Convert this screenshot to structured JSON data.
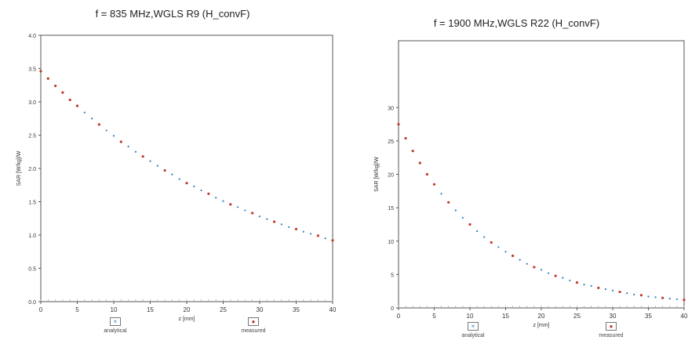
{
  "chart_data": [
    {
      "type": "scatter",
      "title": "f = 835 MHz,WGLS R9 (H_convF)",
      "xlabel": "z [mm]",
      "ylabel": "SAR [W/kg]/W",
      "xlim": [
        0,
        40
      ],
      "ylim": [
        0,
        4.0
      ],
      "xticks": [
        "0",
        "5",
        "10",
        "15",
        "20",
        "25",
        "30",
        "35",
        "40"
      ],
      "yticks": [
        "0.0",
        "0.5",
        "1.0",
        "1.5",
        "2.0",
        "2.5",
        "3.0",
        "3.5",
        "4.0"
      ],
      "legend": [
        "analytical",
        "measured"
      ],
      "legend_placement": "bottom",
      "grid": false,
      "series": [
        {
          "name": "analytical",
          "color": "#2d7fbf",
          "x": [
            0,
            1,
            2,
            3,
            4,
            5,
            6,
            7,
            8,
            9,
            10,
            11,
            12,
            13,
            14,
            15,
            16,
            17,
            18,
            19,
            20,
            21,
            22,
            23,
            24,
            25,
            26,
            27,
            28,
            29,
            30,
            31,
            32,
            33,
            34,
            35,
            36,
            37,
            38,
            39,
            40
          ],
          "y": [
            3.46,
            3.35,
            3.24,
            3.14,
            3.03,
            2.94,
            2.84,
            2.75,
            2.66,
            2.57,
            2.49,
            2.4,
            2.33,
            2.25,
            2.18,
            2.11,
            2.04,
            1.97,
            1.91,
            1.84,
            1.78,
            1.73,
            1.67,
            1.62,
            1.56,
            1.51,
            1.46,
            1.42,
            1.37,
            1.33,
            1.28,
            1.24,
            1.2,
            1.16,
            1.12,
            1.09,
            1.05,
            1.02,
            0.99,
            0.95,
            0.92
          ]
        },
        {
          "name": "measured",
          "color": "#c0392b",
          "x": [
            0,
            1,
            2,
            3,
            4,
            5,
            8,
            11,
            14,
            17,
            20,
            23,
            26,
            29,
            32,
            35,
            38,
            40
          ],
          "y": [
            3.46,
            3.35,
            3.24,
            3.14,
            3.03,
            2.94,
            2.66,
            2.4,
            2.18,
            1.97,
            1.78,
            1.62,
            1.46,
            1.33,
            1.2,
            1.09,
            0.99,
            0.92
          ]
        }
      ]
    },
    {
      "type": "scatter",
      "title": "f = 1900 MHz,WGLS R22 (H_convF)",
      "xlabel": "z [mm]",
      "ylabel": "SAR [W/kg]/W",
      "xlim": [
        0,
        40
      ],
      "ylim": [
        0,
        40
      ],
      "xticks": [
        "0",
        "5",
        "10",
        "15",
        "20",
        "25",
        "30",
        "35",
        "40"
      ],
      "yticks": [
        "0",
        "5",
        "10",
        "15",
        "20",
        "25",
        "30"
      ],
      "legend": [
        "analytical",
        "measured"
      ],
      "legend_placement": "bottom",
      "grid": false,
      "series": [
        {
          "name": "analytical",
          "color": "#2d7fbf",
          "x": [
            0,
            1,
            2,
            3,
            4,
            5,
            6,
            7,
            8,
            9,
            10,
            11,
            12,
            13,
            14,
            15,
            16,
            17,
            18,
            19,
            20,
            21,
            22,
            23,
            24,
            25,
            26,
            27,
            28,
            29,
            30,
            31,
            32,
            33,
            34,
            35,
            36,
            37,
            38,
            39,
            40
          ],
          "y": [
            27.5,
            25.4,
            23.5,
            21.7,
            20.0,
            18.5,
            17.1,
            15.8,
            14.6,
            13.5,
            12.5,
            11.5,
            10.6,
            9.8,
            9.1,
            8.4,
            7.8,
            7.2,
            6.6,
            6.1,
            5.7,
            5.2,
            4.8,
            4.5,
            4.1,
            3.8,
            3.5,
            3.3,
            3.0,
            2.8,
            2.6,
            2.4,
            2.2,
            2.0,
            1.9,
            1.7,
            1.6,
            1.5,
            1.4,
            1.3,
            1.2
          ]
        },
        {
          "name": "measured",
          "color": "#c0392b",
          "x": [
            0,
            1,
            2,
            3,
            4,
            5,
            7,
            10,
            13,
            16,
            19,
            22,
            25,
            28,
            31,
            34,
            37,
            40
          ],
          "y": [
            27.5,
            25.4,
            23.5,
            21.7,
            20.0,
            18.5,
            15.8,
            12.5,
            9.8,
            7.8,
            6.1,
            4.8,
            3.8,
            3.0,
            2.4,
            1.9,
            1.5,
            1.2
          ]
        }
      ]
    }
  ]
}
